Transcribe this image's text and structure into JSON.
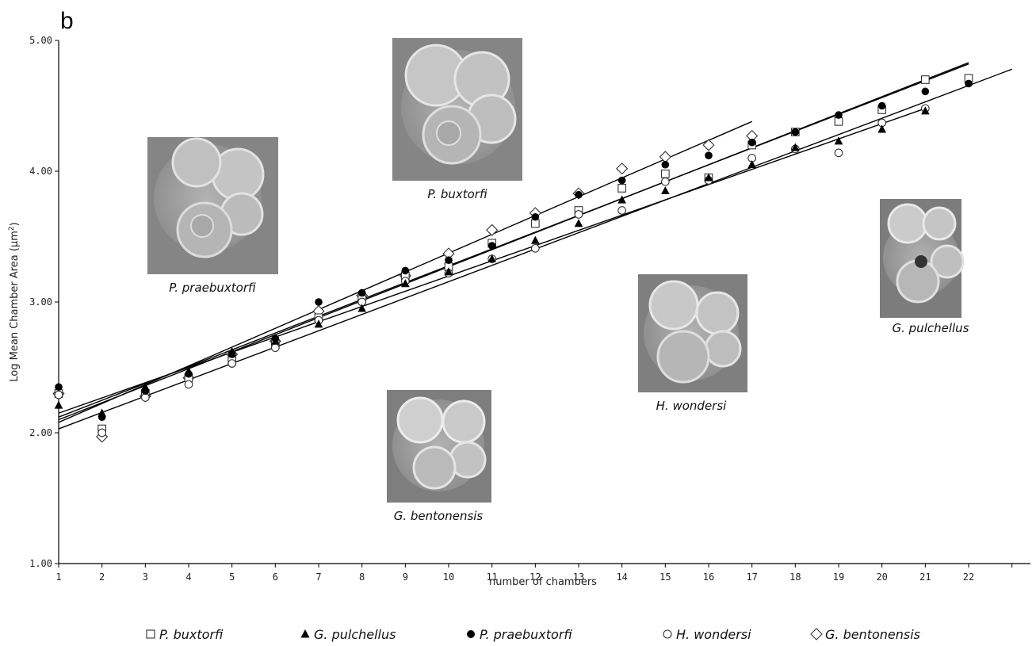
{
  "panel_label": "b",
  "chart_data": {
    "type": "scatter",
    "ylabel_prefix": "Log Mean Chamber Area (",
    "ylabel_unit": "μm",
    "ylabel_sup": "2",
    "ylabel_suffix": ")",
    "xlabel": "number of chambers",
    "xlim": [
      1,
      23
    ],
    "ylim": [
      1.0,
      5.0
    ],
    "xticks": [
      "1",
      "2",
      "3",
      "4",
      "5",
      "6",
      "7",
      "8",
      "9",
      "10",
      "11",
      "12",
      "13",
      "14",
      "15",
      "16",
      "17",
      "18",
      "19",
      "20",
      "21",
      "22"
    ],
    "yticks": [
      "1.00",
      "2.00",
      "3.00",
      "4.00",
      "5.00"
    ],
    "legend_position": "bottom",
    "series": [
      {
        "name": "P. buxtorfi",
        "marker": "open-square",
        "x": [
          1,
          2,
          3,
          4,
          5,
          6,
          7,
          8,
          9,
          10,
          11,
          12,
          13,
          14,
          15,
          16,
          17,
          18,
          19,
          20,
          21,
          22
        ],
        "y": [
          2.3,
          2.03,
          2.3,
          2.42,
          2.55,
          2.68,
          2.88,
          3.02,
          3.2,
          3.27,
          3.45,
          3.6,
          3.7,
          3.87,
          3.98,
          3.95,
          4.2,
          4.3,
          4.38,
          4.47,
          4.7,
          4.71
        ],
        "fit": {
          "x": [
            1,
            22
          ],
          "y": [
            2.12,
            4.82
          ]
        }
      },
      {
        "name": "G. pulchellus",
        "marker": "filled-triangle",
        "x": [
          1,
          2,
          3,
          4,
          5,
          6,
          7,
          8,
          9,
          10,
          11,
          12,
          13,
          14,
          15,
          16,
          17,
          18,
          19,
          20,
          21
        ],
        "y": [
          2.21,
          2.15,
          2.35,
          2.47,
          2.62,
          2.7,
          2.83,
          2.95,
          3.14,
          3.23,
          3.33,
          3.47,
          3.6,
          3.78,
          3.85,
          3.95,
          4.05,
          4.18,
          4.23,
          4.32,
          4.46
        ],
        "fit": {
          "x": [
            1,
            21
          ],
          "y": [
            2.15,
            4.48
          ]
        }
      },
      {
        "name": "P. praebuxtorfi",
        "marker": "filled-circle",
        "x": [
          1,
          2,
          3,
          4,
          5,
          6,
          7,
          8,
          9,
          10,
          11,
          12,
          13,
          14,
          15,
          16,
          17,
          18,
          19,
          20,
          21,
          22
        ],
        "y": [
          2.35,
          2.12,
          2.32,
          2.45,
          2.6,
          2.72,
          3.0,
          3.07,
          3.24,
          3.32,
          3.43,
          3.65,
          3.82,
          3.93,
          4.05,
          4.12,
          4.22,
          4.3,
          4.43,
          4.5,
          4.61,
          4.67
        ],
        "fit": {
          "x": [
            1,
            22
          ],
          "y": [
            2.1,
            4.83
          ]
        }
      },
      {
        "name": "H. wondersi",
        "marker": "open-circle",
        "x": [
          1,
          2,
          3,
          4,
          5,
          6,
          7,
          8,
          9,
          10,
          11,
          12,
          13,
          14,
          15,
          16,
          17,
          18,
          19,
          20,
          21
        ],
        "y": [
          2.29,
          2.0,
          2.27,
          2.37,
          2.53,
          2.65,
          2.86,
          3.0,
          3.16,
          3.22,
          3.33,
          3.41,
          3.67,
          3.7,
          3.92,
          3.93,
          4.1,
          4.17,
          4.14,
          4.37,
          4.48
        ],
        "fit": {
          "x": [
            1,
            23
          ],
          "y": [
            2.03,
            4.78
          ]
        }
      },
      {
        "name": "G. bentonensis",
        "marker": "open-diamond",
        "x": [
          1,
          2,
          3,
          4,
          5,
          6,
          7,
          8,
          9,
          10,
          11,
          12,
          13,
          14,
          15,
          16,
          17
        ],
        "y": [
          2.3,
          1.97,
          2.28,
          2.42,
          2.6,
          2.7,
          2.93,
          3.05,
          3.2,
          3.37,
          3.55,
          3.68,
          3.83,
          4.02,
          4.11,
          4.2,
          4.27
        ],
        "fit": {
          "x": [
            1,
            17
          ],
          "y": [
            2.08,
            4.38
          ]
        }
      }
    ]
  },
  "specimens": [
    {
      "label": "P. praebuxtorfi"
    },
    {
      "label": "P. buxtorfi"
    },
    {
      "label": "G. bentonensis"
    },
    {
      "label": "H. wondersi"
    },
    {
      "label": "G. pulchellus"
    }
  ]
}
